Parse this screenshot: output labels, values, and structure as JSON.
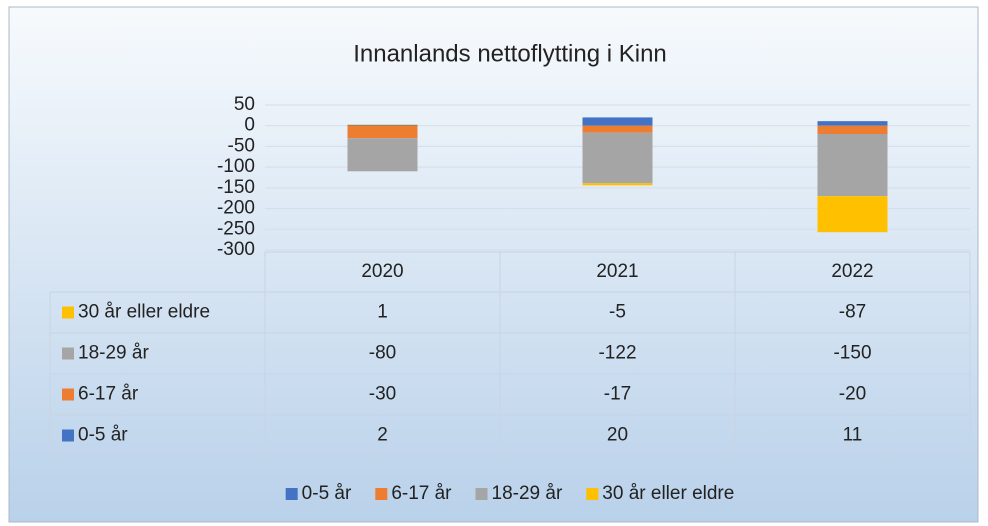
{
  "chart_data": {
    "type": "bar",
    "stacked": true,
    "title": "Innanlands nettoflytting i Kinn",
    "categories": [
      "2020",
      "2021",
      "2022"
    ],
    "series": [
      {
        "name": "0-5 år",
        "color": "#4472c4",
        "values": [
          2,
          20,
          11
        ]
      },
      {
        "name": "6-17 år",
        "color": "#ed7d31",
        "values": [
          -30,
          -17,
          -20
        ]
      },
      {
        "name": "18-29 år",
        "color": "#a5a5a5",
        "values": [
          -80,
          -122,
          -150
        ]
      },
      {
        "name": "30 år eller eldre",
        "color": "#ffc000",
        "values": [
          1,
          -5,
          -87
        ]
      }
    ],
    "ylim": [
      -300,
      50
    ],
    "yticks": [
      50,
      0,
      -50,
      -100,
      -150,
      -200,
      -250,
      -300
    ],
    "grid": true
  }
}
